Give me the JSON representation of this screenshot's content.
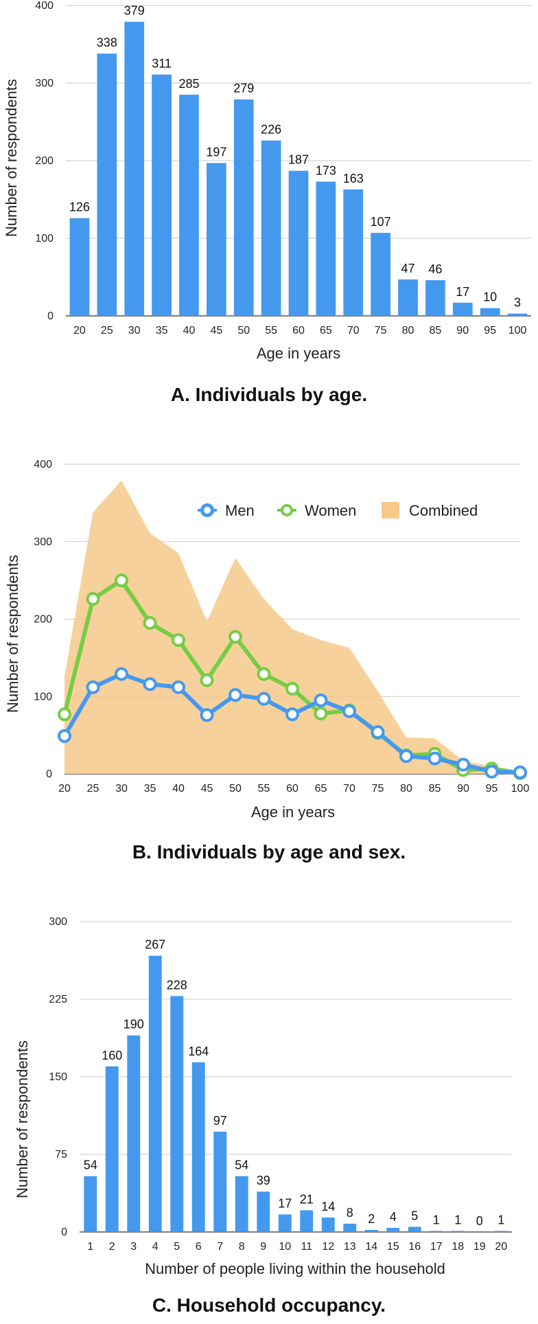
{
  "chart_data": [
    {
      "id": "A",
      "type": "bar",
      "title": "A. Individuals by age.",
      "xlabel": "Age in years",
      "ylabel": "Number of respondents",
      "ylim": [
        0,
        400
      ],
      "yticks": [
        0,
        100,
        200,
        300,
        400
      ],
      "grid": true,
      "color": "#4499ee",
      "categories": [
        "20",
        "25",
        "30",
        "35",
        "40",
        "45",
        "50",
        "55",
        "60",
        "65",
        "70",
        "75",
        "80",
        "85",
        "90",
        "95",
        "100"
      ],
      "values": [
        126,
        338,
        379,
        311,
        285,
        197,
        279,
        226,
        187,
        173,
        163,
        107,
        47,
        46,
        17,
        10,
        3
      ]
    },
    {
      "id": "B",
      "type": "line",
      "title": "B. Individuals by age and sex.",
      "xlabel": "Age in years",
      "ylabel": "Number of respondents",
      "ylim": [
        0,
        400
      ],
      "yticks": [
        0,
        100,
        200,
        300,
        400
      ],
      "grid": true,
      "legend": "top-right",
      "x": [
        "20",
        "25",
        "30",
        "35",
        "40",
        "45",
        "50",
        "55",
        "60",
        "65",
        "70",
        "75",
        "80",
        "85",
        "90",
        "95",
        "100"
      ],
      "series": [
        {
          "name": "Men",
          "kind": "line",
          "color": "#4499ee",
          "values": [
            49,
            112,
            129,
            116,
            112,
            76,
            102,
            97,
            77,
            95,
            81,
            54,
            23,
            20,
            12,
            3,
            2
          ]
        },
        {
          "name": "Women",
          "kind": "line",
          "color": "#77cc44",
          "values": [
            77,
            226,
            250,
            195,
            173,
            121,
            177,
            129,
            110,
            78,
            82,
            53,
            24,
            26,
            5,
            7,
            1
          ]
        },
        {
          "name": "Combined",
          "kind": "area",
          "color": "#f6c98a",
          "values": [
            126,
            338,
            379,
            311,
            285,
            197,
            279,
            226,
            187,
            173,
            163,
            107,
            47,
            46,
            17,
            10,
            3
          ]
        }
      ]
    },
    {
      "id": "C",
      "type": "bar",
      "title": "C. Household occupancy.",
      "xlabel": "Number of people living within the household",
      "ylabel": "Number of respondents",
      "ylim": [
        0,
        300
      ],
      "yticks": [
        0,
        75,
        150,
        225,
        300
      ],
      "grid": true,
      "color": "#4499ee",
      "categories": [
        "1",
        "2",
        "3",
        "4",
        "5",
        "6",
        "7",
        "8",
        "9",
        "10",
        "11",
        "12",
        "13",
        "14",
        "15",
        "16",
        "17",
        "18",
        "19",
        "20"
      ],
      "values": [
        54,
        160,
        190,
        267,
        228,
        164,
        97,
        54,
        39,
        17,
        21,
        14,
        8,
        2,
        4,
        5,
        1,
        1,
        0,
        1
      ]
    }
  ]
}
